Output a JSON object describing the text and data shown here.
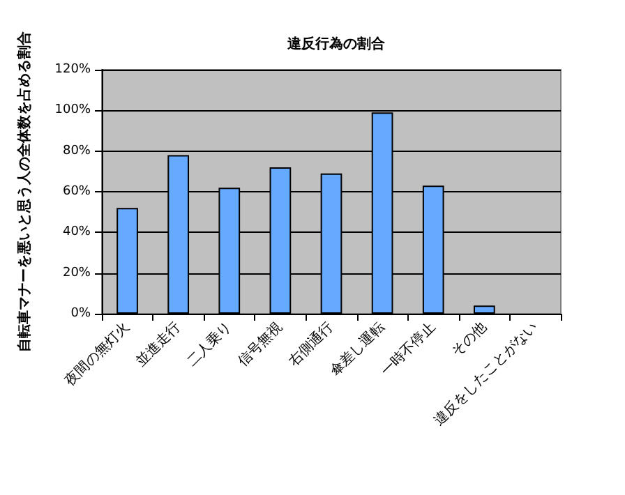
{
  "chart_data": {
    "type": "bar",
    "title": "違反行為の割合",
    "ylabel": "自転車マナーを悪いと思う人の全体数を占める割合",
    "categories": [
      "夜間の無灯火",
      "並進走行",
      "二人乗り",
      "信号無視",
      "右側通行",
      "傘差し運転",
      "一時不停止",
      "その他",
      "違反をしたことがない"
    ],
    "values": [
      52,
      78,
      62,
      72,
      69,
      99,
      63,
      4,
      0
    ],
    "color": "#66aaff",
    "ylim": [
      0,
      120
    ],
    "yticks": [
      {
        "value": 0,
        "label": "0%"
      },
      {
        "value": 20,
        "label": "20%"
      },
      {
        "value": 40,
        "label": "40%"
      },
      {
        "value": 60,
        "label": "60%"
      },
      {
        "value": 80,
        "label": "80%"
      },
      {
        "value": 100,
        "label": "100%"
      },
      {
        "value": 120,
        "label": "120%"
      }
    ],
    "grid": "y"
  }
}
